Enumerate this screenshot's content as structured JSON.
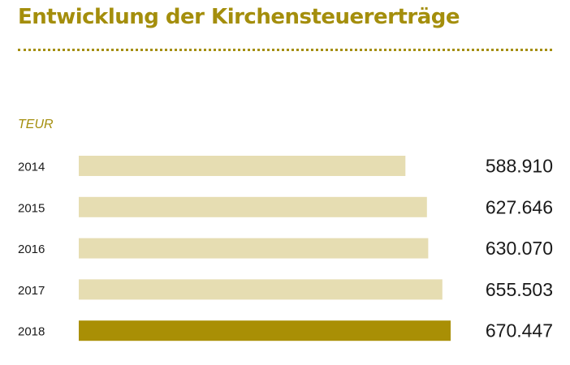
{
  "header": {
    "title": "Entwicklung der Kirchensteuererträge",
    "unit": "TEUR"
  },
  "colors": {
    "accent": "#a48e0c",
    "bar_default": "#e6ddb2",
    "bar_highlight": "#a98f05"
  },
  "chart_data": {
    "type": "bar",
    "orientation": "horizontal",
    "title": "Entwicklung der Kirchensteuererträge",
    "unit": "TEUR",
    "categories": [
      "2014",
      "2015",
      "2016",
      "2017",
      "2018"
    ],
    "values": [
      588910,
      627646,
      630070,
      655503,
      670447
    ],
    "value_labels": [
      "588.910",
      "627.646",
      "630.070",
      "655.503",
      "670.447"
    ],
    "highlight_index": 4,
    "xlim": [
      0,
      670447
    ],
    "grid": false,
    "legend": false
  }
}
